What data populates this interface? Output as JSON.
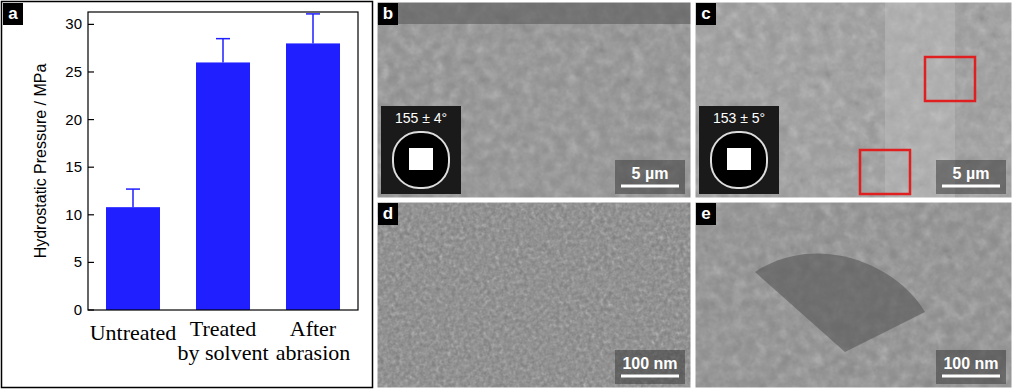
{
  "chart_data": {
    "type": "bar",
    "categories": [
      "Untreated",
      "Treated by solvent",
      "After abrasion"
    ],
    "values": [
      10.8,
      26,
      28
    ],
    "errors": [
      1.9,
      2.5,
      3.1
    ],
    "color": "#1f1fff",
    "ylabel": "Hydrostatic Pressure / MPa",
    "ylim": [
      0,
      31.3
    ],
    "yticks": [
      0,
      5,
      10,
      15,
      20,
      25,
      30
    ]
  },
  "panels": [
    {
      "label": "a"
    },
    {
      "label": "b",
      "contact_angle": "155 ± 4°",
      "scale_bar": "5 µm"
    },
    {
      "label": "c",
      "contact_angle": "153 ± 5°",
      "scale_bar": "5 µm"
    },
    {
      "label": "d",
      "scale_bar": "100 nm"
    },
    {
      "label": "e",
      "scale_bar": "100 nm"
    }
  ]
}
